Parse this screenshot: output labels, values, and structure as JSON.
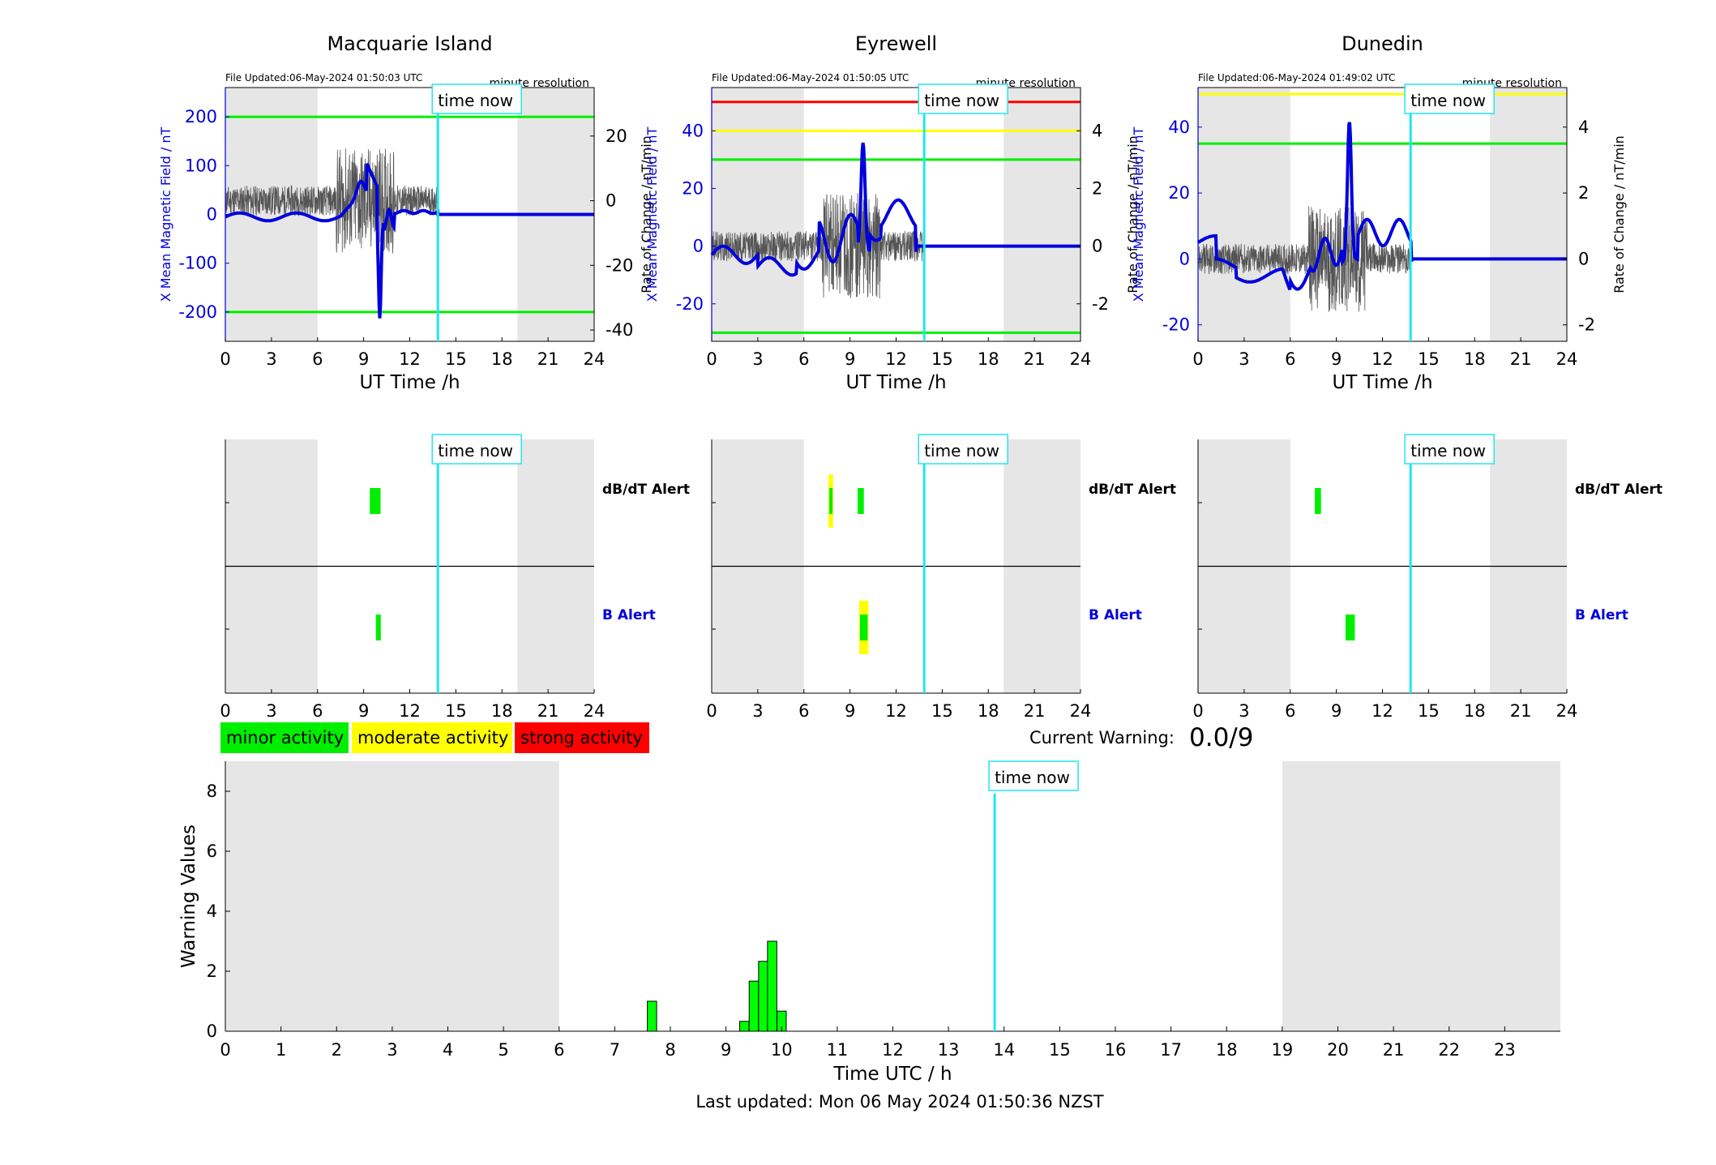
{
  "colors": {
    "x_field": "#0000dd",
    "rate": "#555555",
    "time_now": "#22e5f0",
    "shade": "#e6e6e6",
    "green": "#00ee00",
    "yellow": "#ffff00",
    "red": "#ff0000",
    "bar_fill": "#00ff00"
  },
  "common": {
    "x_ticks": [
      "0",
      "3",
      "6",
      "9",
      "12",
      "15",
      "18",
      "21",
      "24"
    ],
    "x_label": "UT Time /h",
    "y_left_label": "X Mean Magnetic Field / nT",
    "y_right_label": "Rate of Change / nT/min",
    "resolution_label": "minute resolution",
    "time_now_label": "time now",
    "time_now_hour": 13.83,
    "night_shade_hours": [
      [
        0,
        6
      ],
      [
        19,
        24
      ]
    ],
    "dbdt_alert_label": "dB/dT Alert",
    "b_alert_label": "B Alert"
  },
  "stations": [
    {
      "name": "Macquarie Island",
      "file_updated": "File Updated:06-May-2024 01:50:03 UTC",
      "y_ticks_left": [
        "200",
        "100",
        "0",
        "-100",
        "-200"
      ],
      "y_ticks_right": [
        "20",
        "0",
        "-20",
        "-40"
      ],
      "thresholds": [
        {
          "value": 200,
          "level": "green"
        },
        {
          "value": -200,
          "level": "green"
        }
      ],
      "dbdt_alerts": [
        {
          "start": 9.4,
          "end": 10.1,
          "level": "green"
        }
      ],
      "b_alerts": [
        {
          "start": 9.8,
          "end": 10.1,
          "level": "green"
        }
      ]
    },
    {
      "name": "Eyrewell",
      "file_updated": "File Updated:06-May-2024 01:50:05 UTC",
      "y_ticks_left": [
        "40",
        "20",
        "0",
        "-20"
      ],
      "y_ticks_right": [
        "4",
        "2",
        "0",
        "-2"
      ],
      "thresholds": [
        {
          "value": 50,
          "level": "red"
        },
        {
          "value": 40,
          "level": "yellow"
        },
        {
          "value": 30,
          "level": "green"
        },
        {
          "value": -30,
          "level": "green"
        }
      ],
      "dbdt_alerts": [
        {
          "start": 7.6,
          "end": 7.9,
          "level": "yellow"
        },
        {
          "start": 9.5,
          "end": 9.9,
          "level": "green"
        }
      ],
      "b_alerts": [
        {
          "start": 9.6,
          "end": 10.2,
          "level": "yellow"
        }
      ]
    },
    {
      "name": "Dunedin",
      "file_updated": "File Updated:06-May-2024 01:49:02 UTC",
      "y_ticks_left": [
        "40",
        "20",
        "0",
        "-20"
      ],
      "y_ticks_right": [
        "4",
        "2",
        "0",
        "-2"
      ],
      "thresholds": [
        {
          "value": 50,
          "level": "yellow"
        },
        {
          "value": 35,
          "level": "green"
        }
      ],
      "dbdt_alerts": [
        {
          "start": 7.6,
          "end": 8.0,
          "level": "green"
        }
      ],
      "b_alerts": [
        {
          "start": 9.6,
          "end": 10.2,
          "level": "green"
        }
      ]
    }
  ],
  "legend": {
    "minor": "minor activity",
    "moderate": "moderate activity",
    "strong": "strong activity"
  },
  "current_warning": {
    "label": "Current Warning:",
    "value": "0.0/9"
  },
  "chart_data": {
    "type": "bar",
    "title": "",
    "xlabel": "Time UTC / h",
    "ylabel": "Warning Values",
    "xlim": [
      0,
      24
    ],
    "ylim": [
      0,
      9
    ],
    "x_ticks": [
      "0",
      "1",
      "2",
      "3",
      "4",
      "5",
      "6",
      "7",
      "8",
      "9",
      "10",
      "11",
      "12",
      "13",
      "14",
      "15",
      "16",
      "17",
      "18",
      "19",
      "20",
      "21",
      "22",
      "23"
    ],
    "y_ticks": [
      "0",
      "2",
      "4",
      "6",
      "8"
    ],
    "bar_width_hours": 0.167,
    "x": [
      7.67,
      9.33,
      9.5,
      9.67,
      9.83,
      10.0
    ],
    "values": [
      1.0,
      0.33,
      1.67,
      2.33,
      3.0,
      0.67
    ],
    "night_shade_hours": [
      [
        0,
        6
      ],
      [
        19,
        24
      ]
    ],
    "time_now_hour": 13.83,
    "time_now_label": "time now"
  },
  "footer": "Last updated: Mon 06 May 2024 01:50:36 NZST"
}
